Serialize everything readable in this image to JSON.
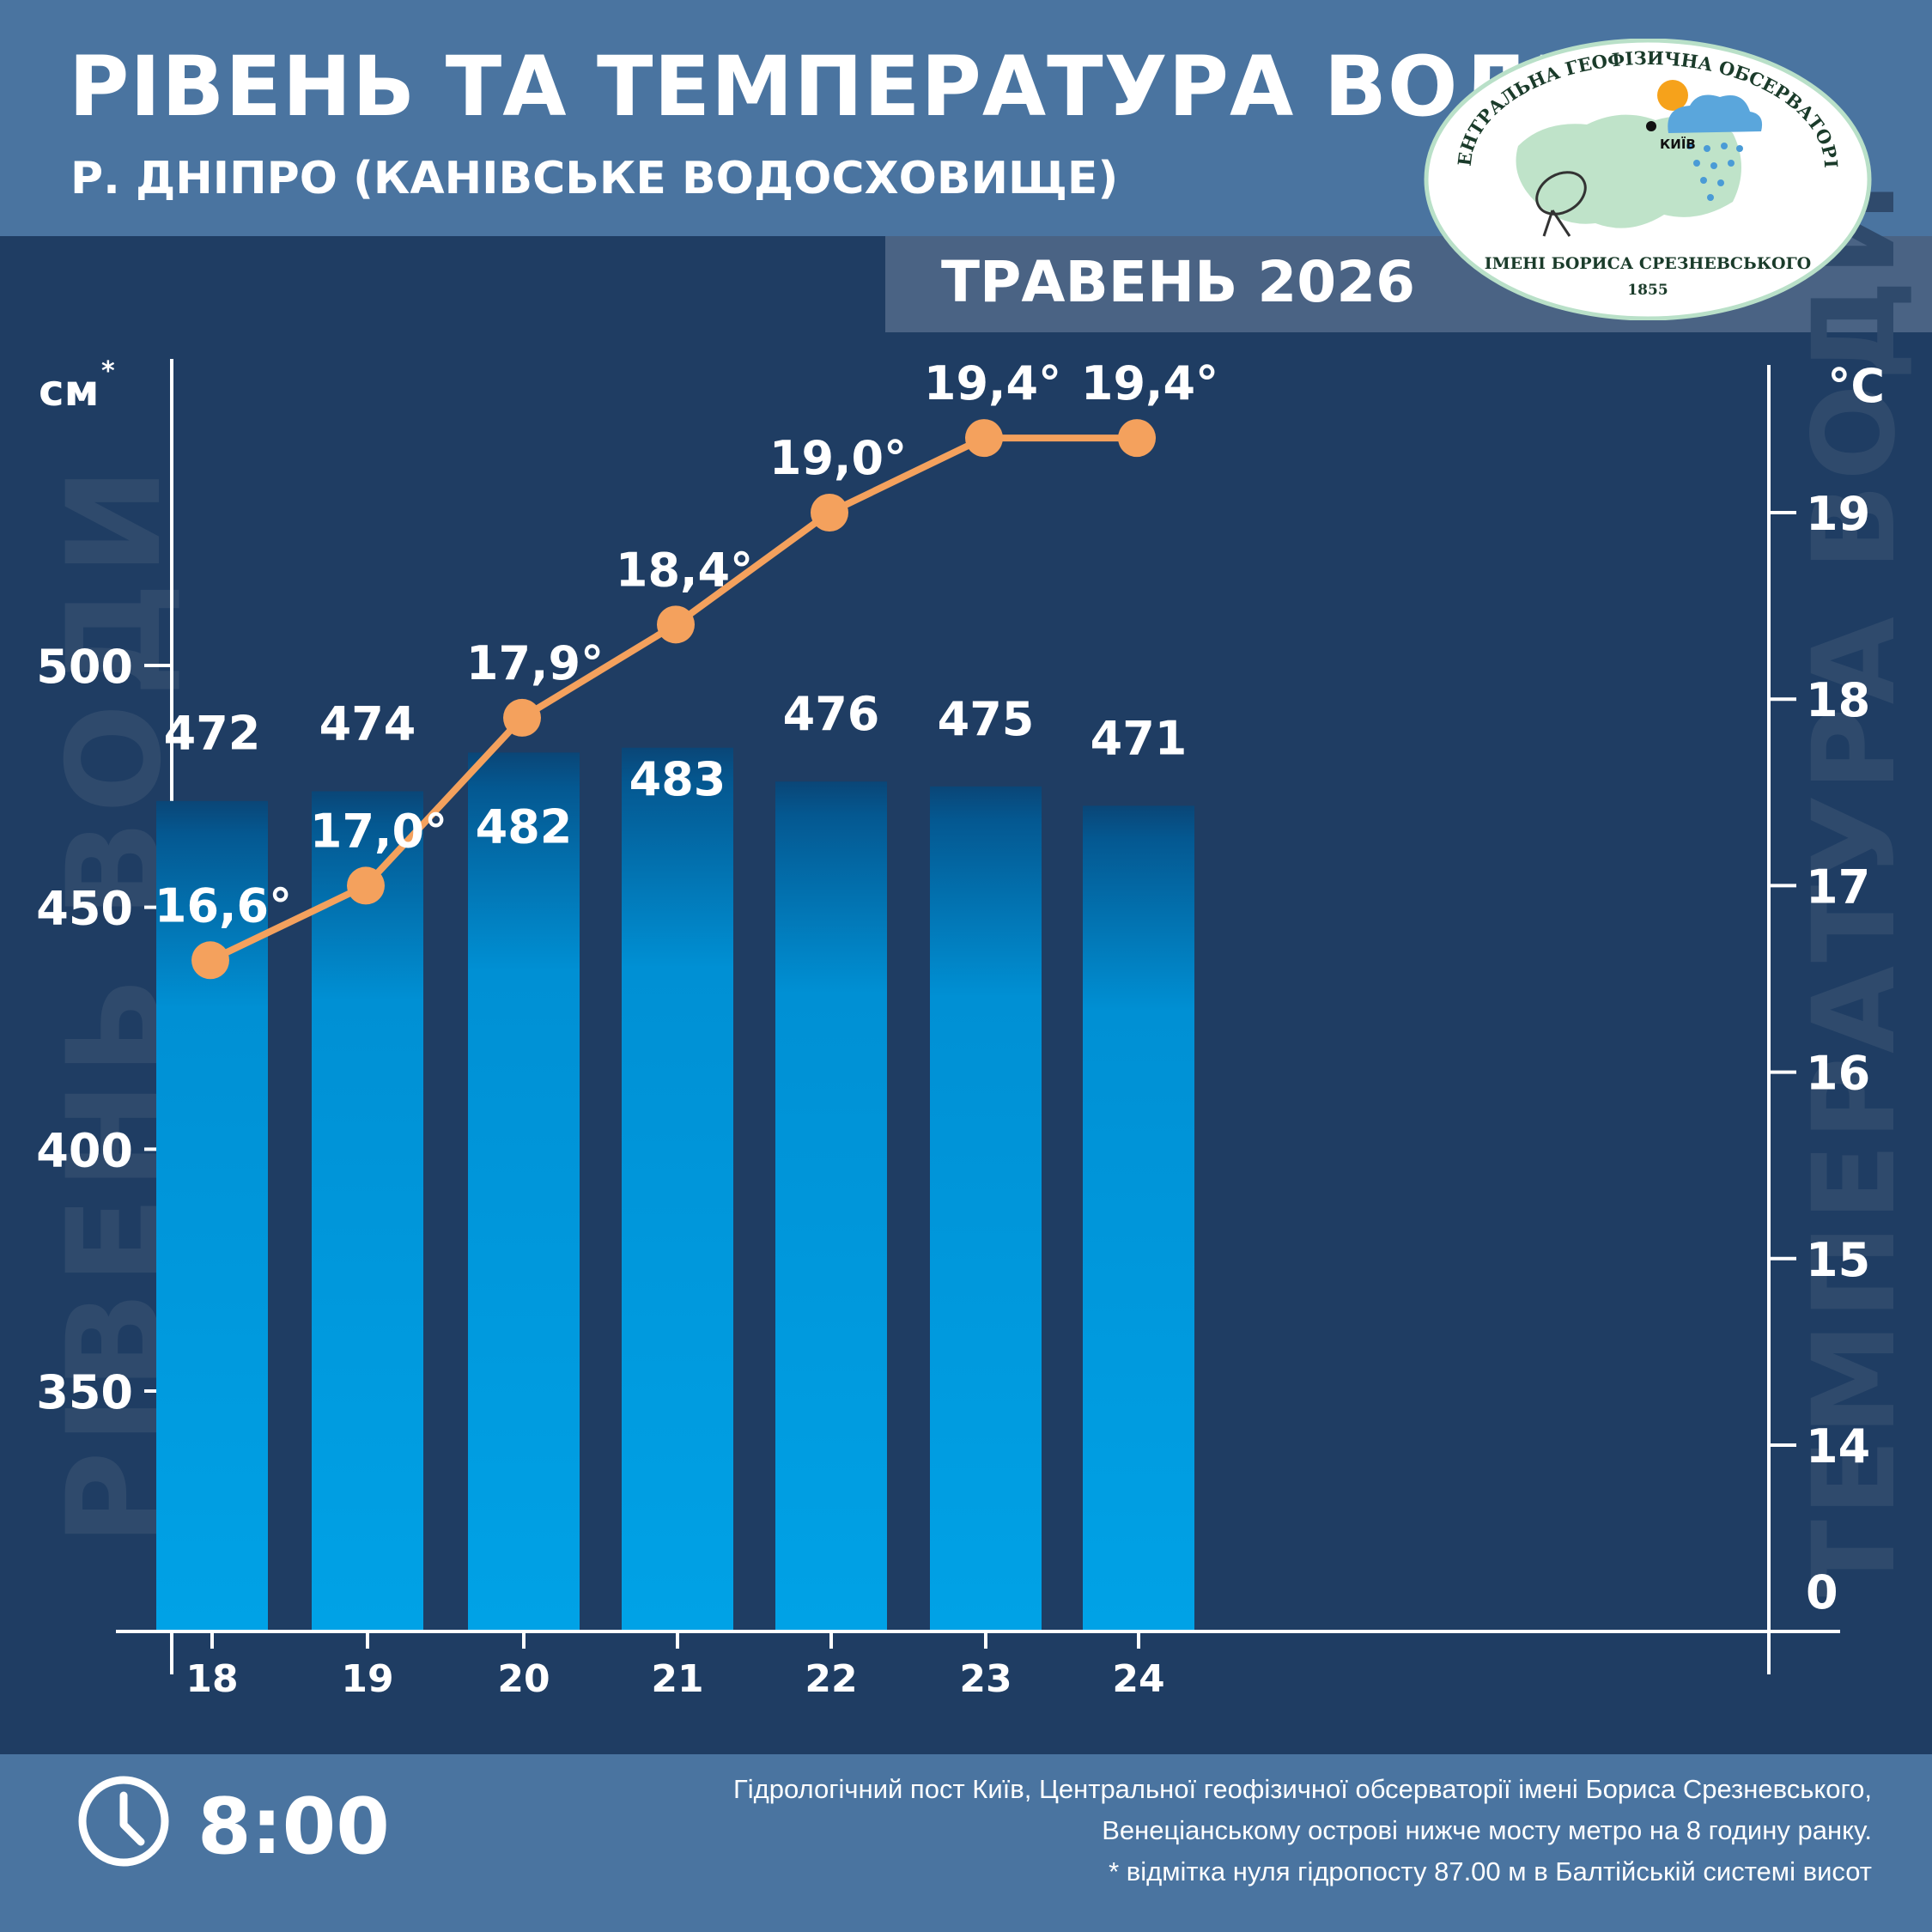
{
  "header": {
    "title": "РІВЕНЬ ТА ТЕМПЕРАТУРА ВОДИ",
    "subtitle": "Р. ДНІПРО (КАНІВСЬКЕ ВОДОСХОВИЩЕ)",
    "period": "ТРАВЕНЬ 2026"
  },
  "logo": {
    "top_text": "ЦЕНТРАЛЬНА ГЕОФІЗИЧНА ОБСЕРВАТОРІЯ",
    "bottom_text": "ІМЕНІ БОРИСА СРЕЗНЕВСЬКОГО",
    "year": "1855",
    "city": "КИЇВ"
  },
  "footer": {
    "time": "8:00",
    "note_line1": "Гідрологічний пост Київ, Центральної геофізичної обсерваторії імені Бориса Срезневського,",
    "note_line2": "Венеціанському острові нижче мосту метро  на 8 годину ранку.",
    "note_line3": "* відмітка нуля гідропосту 87.00 м в Балтійській системі висот"
  },
  "colors": {
    "background": "#1f3d63",
    "header": "#4a74a0",
    "bar_top": "#0a4a7a",
    "bar_bottom": "#009fe3",
    "line": "#f4a15d",
    "watermark": "#2f4a6c"
  },
  "chart_data": {
    "type": "bar+line",
    "categories": [
      "18",
      "19",
      "20",
      "21",
      "22",
      "23",
      "24"
    ],
    "series": [
      {
        "name": "РІВЕНЬ ВОДИ",
        "type": "bar",
        "axis": "left",
        "unit": "см*",
        "values": [
          472,
          474,
          482,
          483,
          476,
          475,
          471
        ]
      },
      {
        "name": "ТЕМПЕРАТУРА ВОДИ",
        "type": "line",
        "axis": "right",
        "unit": "°C",
        "values": [
          16.6,
          17.0,
          17.9,
          18.4,
          19.0,
          19.4,
          19.4
        ],
        "labels": [
          "16,6°",
          "17,0°",
          "17,9°",
          "18,4°",
          "19,0°",
          "19,4°",
          "19,4°"
        ]
      }
    ],
    "left_axis": {
      "label": "см",
      "label_sup": "*",
      "ticks": [
        "350",
        "400",
        "450",
        "500"
      ]
    },
    "right_axis": {
      "label": "°C",
      "ticks": [
        "0",
        "14",
        "15",
        "16",
        "17",
        "18",
        "19"
      ]
    },
    "watermark_left": "РІВЕНЬ ВОДИ",
    "watermark_right": "ТЕМПЕРАТУРА ВОДИ"
  }
}
